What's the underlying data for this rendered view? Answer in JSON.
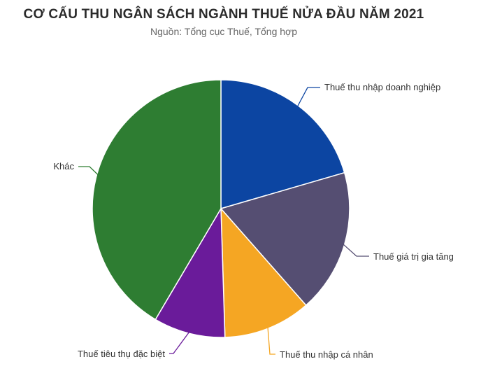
{
  "chart_data": {
    "type": "pie",
    "title": "CƠ CẤU THU NGÂN SÁCH NGÀNH THUẾ NỬA ĐẦU NĂM 2021",
    "subtitle": "Nguồn: Tổng cục Thuế, Tổng hợp",
    "start_angle_deg": 0,
    "direction": "clockwise",
    "legend": "none",
    "slices": [
      {
        "label": "Thuế thu nhập doanh nghiệp",
        "value": 20.5,
        "color": "#0c45a2"
      },
      {
        "label": "Thuế giá trị gia tăng",
        "value": 18.0,
        "color": "#554e72"
      },
      {
        "label": "Thuế thu nhập cá nhân",
        "value": 11.0,
        "color": "#f5a623"
      },
      {
        "label": "Thuế tiêu thụ đặc biệt",
        "value": 9.0,
        "color": "#6a1b9a"
      },
      {
        "label": "Khác",
        "value": 41.5,
        "color": "#2e7d32"
      }
    ]
  }
}
